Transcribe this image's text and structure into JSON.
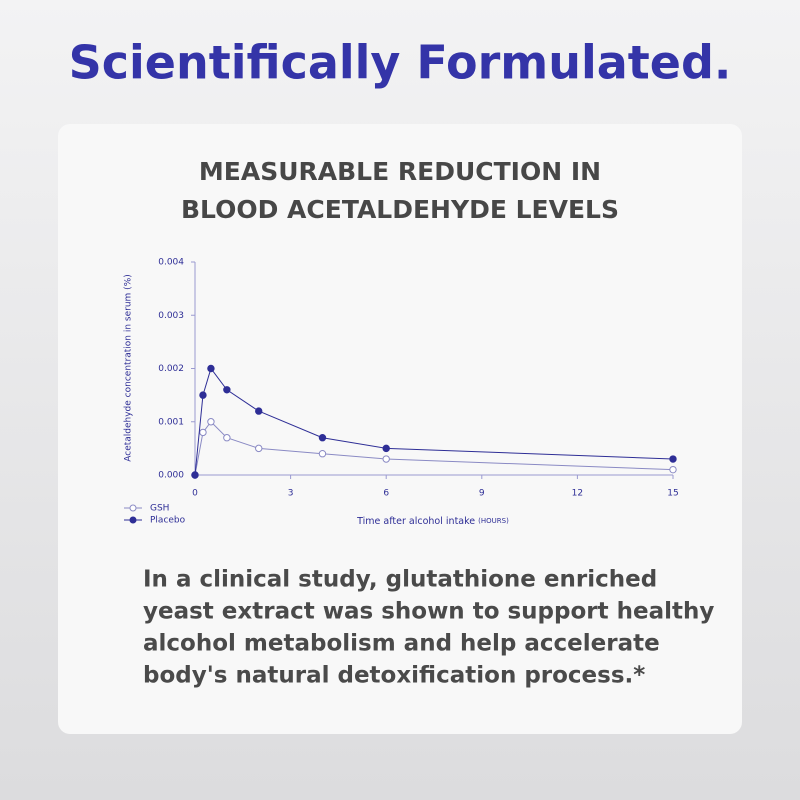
{
  "headline": "Scientifically Formulated.",
  "chart_data": {
    "type": "line",
    "title": [
      "MEASURABLE REDUCTION IN",
      "BLOOD ACETALDEHYDE LEVELS"
    ],
    "xlabel": "Time after alcohol intake",
    "xlabel_unit": "(HOURS)",
    "ylabel": "Acetaldehyde concentration in serum (%)",
    "x": [
      0,
      0.25,
      0.5,
      1,
      2,
      4,
      6,
      15
    ],
    "series": [
      {
        "name": "GSH",
        "color": "#8a8ac4",
        "marker": "open",
        "values": [
          0,
          0.0008,
          0.001,
          0.0007,
          0.0005,
          0.0004,
          0.0003,
          0.0001
        ]
      },
      {
        "name": "Placebo",
        "color": "#2e2e96",
        "marker": "filled",
        "values": [
          0,
          0.0015,
          0.002,
          0.0016,
          0.0012,
          0.0007,
          0.0005,
          0.0003
        ]
      }
    ],
    "xlim": [
      0,
      15
    ],
    "xticks": [
      0,
      3,
      6,
      9,
      12,
      15
    ],
    "ylim": [
      0,
      0.004
    ],
    "yticks": [
      {
        "value": 0,
        "label": "0.000"
      },
      0.001,
      0.002,
      0.003,
      0.004
    ],
    "axis_color": "#9a9ad0",
    "legend": "lower left"
  },
  "body": [
    "In a clinical study, glutathione enriched",
    "yeast extract was shown to support healthy",
    "alcohol metabolism and help accelerate",
    "body's natural detoxification process.*"
  ]
}
